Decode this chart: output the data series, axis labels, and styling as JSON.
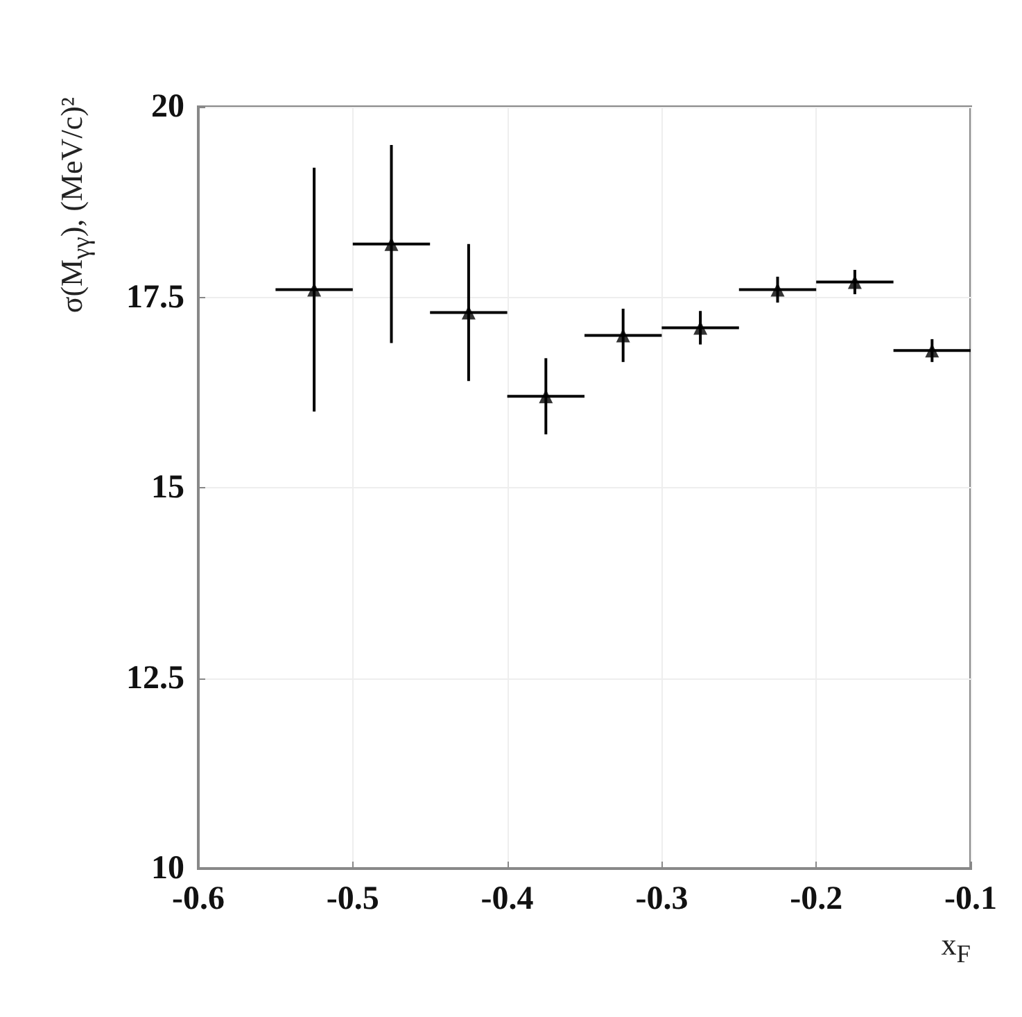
{
  "chart_data": {
    "type": "scatter",
    "xlabel": "x$_{F}$",
    "ylabel": "σ(M$_{γγ}$), (MeV/c)²",
    "x": [
      -0.525,
      -0.475,
      -0.425,
      -0.375,
      -0.325,
      -0.275,
      -0.225,
      -0.175,
      -0.125
    ],
    "values": [
      17.6,
      18.2,
      17.3,
      16.2,
      17.0,
      17.1,
      17.6,
      17.7,
      16.8
    ],
    "errors": [
      1.6,
      1.3,
      0.9,
      0.5,
      0.35,
      0.22,
      0.17,
      0.16,
      0.15
    ],
    "xerrors": [
      0.025,
      0.025,
      0.025,
      0.025,
      0.025,
      0.025,
      0.025,
      0.025,
      0.025
    ],
    "color": "#000000",
    "marker": "triangle",
    "xlim": [
      -0.6,
      -0.1
    ],
    "xticks": [
      -0.6,
      -0.5,
      -0.4,
      -0.3,
      -0.2,
      -0.1
    ],
    "ylim": [
      10,
      20
    ],
    "yticks": [
      10,
      12.5,
      15,
      17.5,
      20
    ],
    "grid": true
  }
}
